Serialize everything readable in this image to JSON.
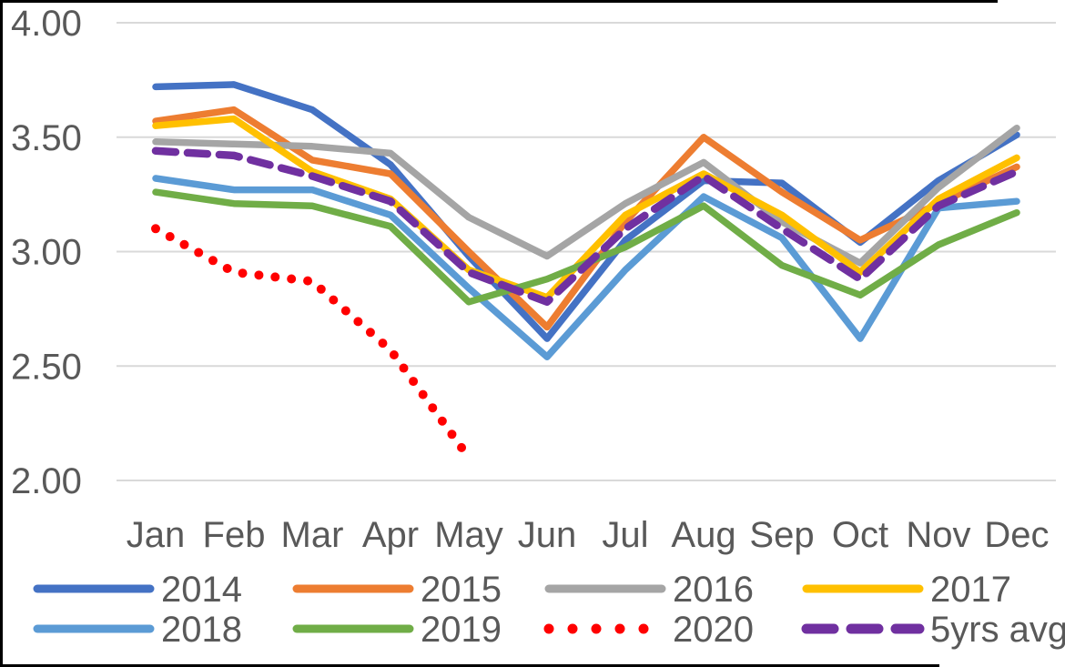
{
  "chart_data": {
    "type": "line",
    "title": "",
    "xlabel": "",
    "ylabel": "",
    "categories": [
      "Jan",
      "Feb",
      "Mar",
      "Apr",
      "May",
      "Jun",
      "Jul",
      "Aug",
      "Sep",
      "Oct",
      "Nov",
      "Dec"
    ],
    "y_axis": {
      "ticks": [
        "4.00",
        "3.50",
        "3.00",
        "2.50",
        "2.00"
      ],
      "min": 2.0,
      "max": 4.0,
      "step": 0.5
    },
    "grid": true,
    "legend_position": "bottom",
    "series": [
      {
        "name": "2014",
        "color": "#4472C4",
        "style": "solid",
        "values": [
          3.72,
          3.73,
          3.62,
          3.38,
          2.98,
          2.62,
          3.05,
          3.31,
          3.3,
          3.04,
          3.31,
          3.51
        ]
      },
      {
        "name": "2015",
        "color": "#ED7D31",
        "style": "solid",
        "values": [
          3.57,
          3.62,
          3.4,
          3.34,
          3.0,
          2.67,
          3.13,
          3.5,
          3.26,
          3.05,
          3.21,
          3.37
        ]
      },
      {
        "name": "2016",
        "color": "#A5A5A5",
        "style": "solid",
        "values": [
          3.48,
          3.47,
          3.46,
          3.43,
          3.15,
          2.98,
          3.21,
          3.39,
          3.13,
          2.95,
          3.28,
          3.54
        ]
      },
      {
        "name": "2017",
        "color": "#FFC000",
        "style": "solid",
        "values": [
          3.55,
          3.58,
          3.35,
          3.23,
          2.92,
          2.8,
          3.16,
          3.34,
          3.16,
          2.91,
          3.23,
          3.41
        ]
      },
      {
        "name": "2018",
        "color": "#5B9BD5",
        "style": "solid",
        "values": [
          3.32,
          3.27,
          3.27,
          3.16,
          2.84,
          2.54,
          2.92,
          3.24,
          3.06,
          2.62,
          3.19,
          3.22
        ]
      },
      {
        "name": "2019",
        "color": "#70AD47",
        "style": "solid",
        "values": [
          3.26,
          3.21,
          3.2,
          3.11,
          2.78,
          2.88,
          3.02,
          3.2,
          2.94,
          2.81,
          3.03,
          3.17
        ]
      },
      {
        "name": "2020",
        "color": "#FF0000",
        "style": "dotted",
        "values": [
          3.1,
          2.91,
          2.87,
          2.57,
          2.1,
          null,
          null,
          null,
          null,
          null,
          null,
          null
        ]
      },
      {
        "name": "5yrs avg",
        "color": "#7030A0",
        "style": "dashed",
        "values": [
          3.44,
          3.42,
          3.33,
          3.22,
          2.91,
          2.78,
          3.1,
          3.33,
          3.1,
          2.88,
          3.2,
          3.35
        ]
      }
    ],
    "legend": {
      "rows": [
        [
          "2014",
          "2015",
          "2016",
          "2017"
        ],
        [
          "2018",
          "2019",
          "2020",
          "5yrs avg"
        ]
      ]
    }
  },
  "colors": {
    "axis_text": "#595959",
    "gridline": "#D9D9D9",
    "background": "#FFFFFF",
    "border": "#000000"
  }
}
